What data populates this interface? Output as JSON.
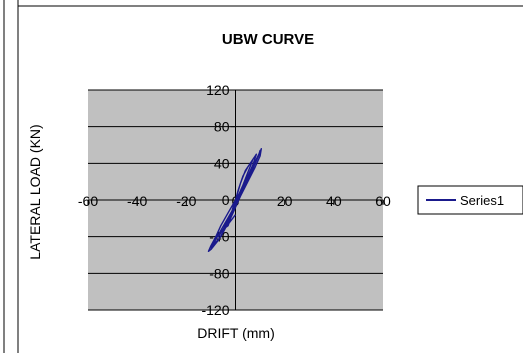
{
  "chart_data": {
    "type": "scatter",
    "title": "UBW CURVE",
    "xlabel": "DRIFT (mm)",
    "ylabel": "LATERAL LOAD (KN)",
    "xlim": [
      -60,
      60
    ],
    "ylim": [
      -120,
      120
    ],
    "x_ticks": [
      -60,
      -40,
      -20,
      0,
      20,
      40,
      60
    ],
    "y_ticks": [
      -120,
      -80,
      -40,
      0,
      40,
      80,
      120
    ],
    "grid": "horizontal",
    "legend_position": "right",
    "series": [
      {
        "name": "Series1",
        "color": "#1a1a8c",
        "x": [
          0,
          2,
          4,
          6,
          7,
          6.5,
          5,
          3,
          1,
          -1,
          -2,
          -3,
          -4,
          -3,
          -2,
          -1,
          0,
          1,
          2,
          3,
          5,
          7,
          8,
          8.5,
          8,
          7,
          5,
          3,
          1,
          -1,
          -3,
          -5,
          -6.5,
          -7,
          -6,
          -4,
          -2,
          0,
          2,
          4,
          6,
          8,
          9.5,
          10,
          9.5,
          8,
          6,
          4,
          2,
          0,
          -2,
          -4,
          -6,
          -8,
          -9.5,
          -10,
          -9,
          -7,
          -4,
          -1,
          2,
          5,
          8,
          10,
          10.5,
          10,
          8,
          6,
          3,
          0,
          -3,
          -6,
          -8,
          -10,
          -11,
          -10,
          -7,
          -4,
          0
        ],
        "y": [
          0,
          18,
          32,
          40,
          44,
          40,
          30,
          16,
          4,
          -8,
          -18,
          -26,
          -30,
          -28,
          -20,
          -10,
          0,
          10,
          18,
          26,
          36,
          44,
          48,
          50,
          46,
          38,
          26,
          14,
          2,
          -10,
          -22,
          -32,
          -38,
          -40,
          -36,
          -28,
          -18,
          -6,
          6,
          18,
          30,
          42,
          50,
          54,
          50,
          40,
          28,
          16,
          4,
          -8,
          -20,
          -30,
          -40,
          -46,
          -50,
          -52,
          -48,
          -38,
          -24,
          -10,
          4,
          20,
          36,
          48,
          56,
          52,
          40,
          28,
          14,
          0,
          -14,
          -28,
          -40,
          -50,
          -56,
          -54,
          -44,
          -30,
          -16
        ]
      }
    ]
  }
}
